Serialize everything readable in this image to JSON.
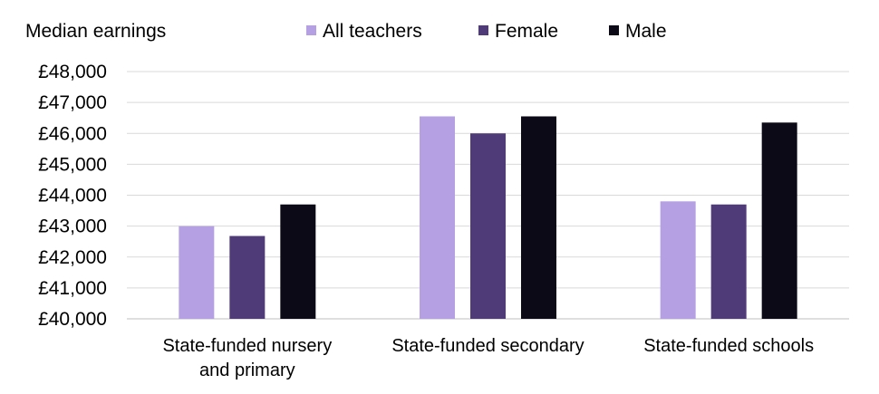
{
  "chart_data": {
    "type": "bar",
    "ylabel": "Median earnings",
    "ylim": [
      40000,
      48000
    ],
    "yticks": [
      "£40,000",
      "£41,000",
      "£42,000",
      "£43,000",
      "£44,000",
      "£45,000",
      "£46,000",
      "£47,000",
      "£48,000"
    ],
    "ytick_values": [
      40000,
      41000,
      42000,
      43000,
      44000,
      45000,
      46000,
      47000,
      48000
    ],
    "categories": [
      [
        "State-funded nursery",
        "and primary"
      ],
      [
        "State-funded secondary"
      ],
      [
        "State-funded schools"
      ]
    ],
    "series": [
      {
        "name": "All teachers",
        "color": "#b4a0e2",
        "values": [
          43000,
          46550,
          43800
        ]
      },
      {
        "name": "Female",
        "color": "#4f3b78",
        "values": [
          42680,
          46000,
          43700
        ]
      },
      {
        "name": "Male",
        "color": "#0c0a16",
        "values": [
          43700,
          46550,
          46350
        ]
      }
    ],
    "grid": true,
    "legend_position": "top"
  }
}
